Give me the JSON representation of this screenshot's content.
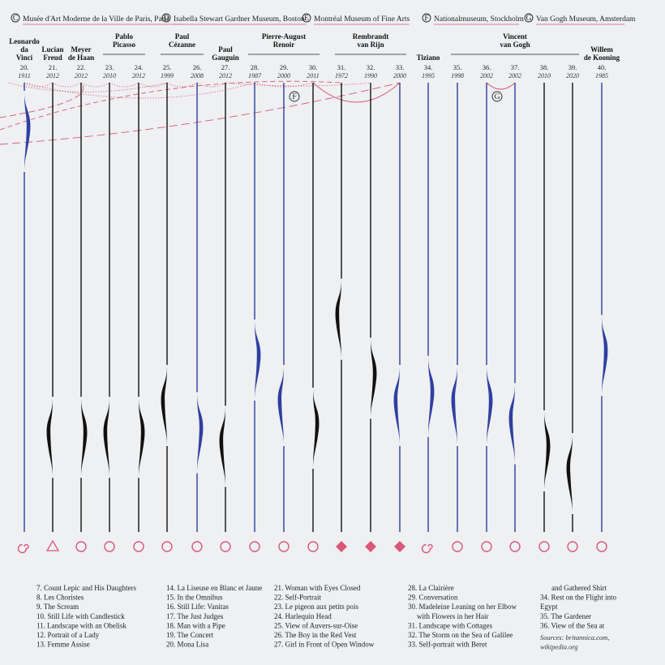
{
  "colors": {
    "background": "#eef0f2",
    "pink": "#d9587a",
    "blue": "#2b3d99",
    "black": "#111111",
    "blue_fill": "#2f3fa0"
  },
  "legend": [
    {
      "letter": "C",
      "label": "Musée d'Art Moderne de la Ville de Paris, Paris"
    },
    {
      "letter": "D",
      "label": "Isabella Stewart Gardner Museum, Boston"
    },
    {
      "letter": "E",
      "label": "Montréal Museum of Fine Arts"
    },
    {
      "letter": "F",
      "label": "Nationalmuseum, Stockholm"
    },
    {
      "letter": "G",
      "label": "Van Gogh Museum, Amsterdam"
    }
  ],
  "artists": [
    {
      "name": [
        "Leonardo",
        "da",
        "Vinci"
      ],
      "cols": [
        20
      ]
    },
    {
      "name": [
        "Lucian",
        "Freud"
      ],
      "cols": [
        21
      ]
    },
    {
      "name": [
        "Meyer",
        "de Haan"
      ],
      "cols": [
        22
      ]
    },
    {
      "name": [
        "Pablo",
        "Picasso"
      ],
      "cols": [
        23,
        24
      ]
    },
    {
      "name": [
        "Paul",
        "Cézanne"
      ],
      "cols": [
        25,
        26
      ]
    },
    {
      "name": [
        "Paul",
        "Gauguin"
      ],
      "cols": [
        27
      ]
    },
    {
      "name": [
        "Pierre-August",
        "Renoir"
      ],
      "cols": [
        28,
        29,
        30
      ]
    },
    {
      "name": [
        "Rembrandt",
        "van Rijn"
      ],
      "cols": [
        31,
        32,
        33
      ]
    },
    {
      "name": [
        "Tiziano"
      ],
      "cols": [
        34
      ]
    },
    {
      "name": [
        "Vincent",
        "van Gogh"
      ],
      "cols": [
        35,
        36,
        37,
        38,
        39
      ]
    },
    {
      "name": [
        "Willem",
        "de Kooning"
      ],
      "cols": [
        40
      ]
    }
  ],
  "paintings": [
    {
      "num": "20.",
      "year": "1911",
      "line": "blue",
      "wave_top": 0.43,
      "wave_color": "blue",
      "end": "spiral"
    },
    {
      "num": "21.",
      "year": "2012",
      "line": "black",
      "wave_top": 0.87,
      "wave_color": "black",
      "end": "triangle"
    },
    {
      "num": "22.",
      "year": "2012",
      "line": "black",
      "wave_top": 0.87,
      "wave_color": "black",
      "end": "circle"
    },
    {
      "num": "23.",
      "year": "2010",
      "line": "black",
      "wave_top": 0.87,
      "wave_color": "black",
      "end": "circle"
    },
    {
      "num": "24.",
      "year": "2012",
      "line": "black",
      "wave_top": 0.87,
      "wave_color": "black",
      "end": "circle"
    },
    {
      "num": "25.",
      "year": "1999",
      "line": "black",
      "wave_top": 0.8,
      "wave_color": "black",
      "end": "circle"
    },
    {
      "num": "26.",
      "year": "2008",
      "line": "blue",
      "wave_top": 0.86,
      "wave_color": "blue",
      "end": "circle"
    },
    {
      "num": "27.",
      "year": "2012",
      "line": "black",
      "wave_top": 0.89,
      "wave_color": "black",
      "end": "circle"
    },
    {
      "num": "28.",
      "year": "1987",
      "line": "blue",
      "wave_top": 0.7,
      "wave_color": "blue",
      "end": "circle"
    },
    {
      "num": "29.",
      "year": "2000",
      "line": "blue",
      "wave_top": 0.8,
      "wave_color": "blue",
      "end": "circle"
    },
    {
      "num": "30.",
      "year": "2011",
      "line": "black",
      "wave_top": 0.85,
      "wave_color": "black",
      "end": "circle"
    },
    {
      "num": "31.",
      "year": "1972",
      "line": "black",
      "wave_top": 0.61,
      "wave_color": "black",
      "end": "diamond"
    },
    {
      "num": "32.",
      "year": "1990",
      "line": "black",
      "wave_top": 0.74,
      "wave_color": "black",
      "end": "diamond"
    },
    {
      "num": "33.",
      "year": "2000",
      "line": "blue",
      "wave_top": 0.8,
      "wave_color": "blue",
      "end": "diamond"
    },
    {
      "num": "34.",
      "year": "1995",
      "line": "blue",
      "wave_top": 0.78,
      "wave_color": "blue",
      "end": "spiral"
    },
    {
      "num": "35.",
      "year": "1998",
      "line": "blue",
      "wave_top": 0.8,
      "wave_color": "blue",
      "end": "circle"
    },
    {
      "num": "36.",
      "year": "2002",
      "line": "blue",
      "wave_top": 0.8,
      "wave_color": "blue",
      "end": "circle"
    },
    {
      "num": "37.",
      "year": "2002",
      "line": "blue",
      "wave_top": 0.84,
      "wave_color": "blue",
      "end": "circle"
    },
    {
      "num": "38.",
      "year": "2010",
      "line": "black",
      "wave_top": 0.9,
      "wave_color": "black",
      "end": "circle"
    },
    {
      "num": "39.",
      "year": "2020",
      "line": "black",
      "wave_top": 0.95,
      "wave_color": "black",
      "end": "circle"
    },
    {
      "num": "40.",
      "year": "1985",
      "line": "blue",
      "wave_top": 0.69,
      "wave_color": "blue",
      "end": "circle"
    }
  ],
  "museum_markers": [
    {
      "letter": "F",
      "col": 29
    },
    {
      "letter": "G",
      "col": 36
    }
  ],
  "painting_list": [
    [
      "7. Count Lepic and His Daughters",
      "8. Les Choristes",
      "9. The Scream",
      "10. Still Life with Candlestick",
      "11. Landscape with an Obelisk",
      "12. Portrait of a Lady",
      "13. Femme Assise"
    ],
    [
      "14. La Liseuse en Blanc et Jaune",
      "15. In the Omnibus",
      "16. Still Life: Vanitas",
      "17. The Just Judges",
      "18. Man with a Pipe",
      "19. The Concert",
      "20. Mona Lisa"
    ],
    [
      "21. Woman with Eyes Closed",
      "22. Self-Portrait",
      "23. Le pigeon aux petits pois",
      "24. Harlequin Head",
      "25. View of Auvers-sur-Oise",
      "26. The Boy in the Red Vest",
      "27. Girl in Front of Open Window"
    ],
    [
      "28. La Clairière",
      "29. Conversation",
      "30. Madeleine Leaning on her Elbow",
      "with Flowers in her Hair",
      "31. Landscape with Cottages",
      "32. The Storm on the Sea of Galilee",
      "33. Self-portrait with Beret"
    ],
    [
      "and Gathered Shirt",
      "34. Rest on the Flight into",
      "Egypt",
      "35. The Gardener",
      "36. View of the Sea at"
    ]
  ],
  "sources": [
    "Sources: britannica.com,",
    "wikipedia.org"
  ]
}
